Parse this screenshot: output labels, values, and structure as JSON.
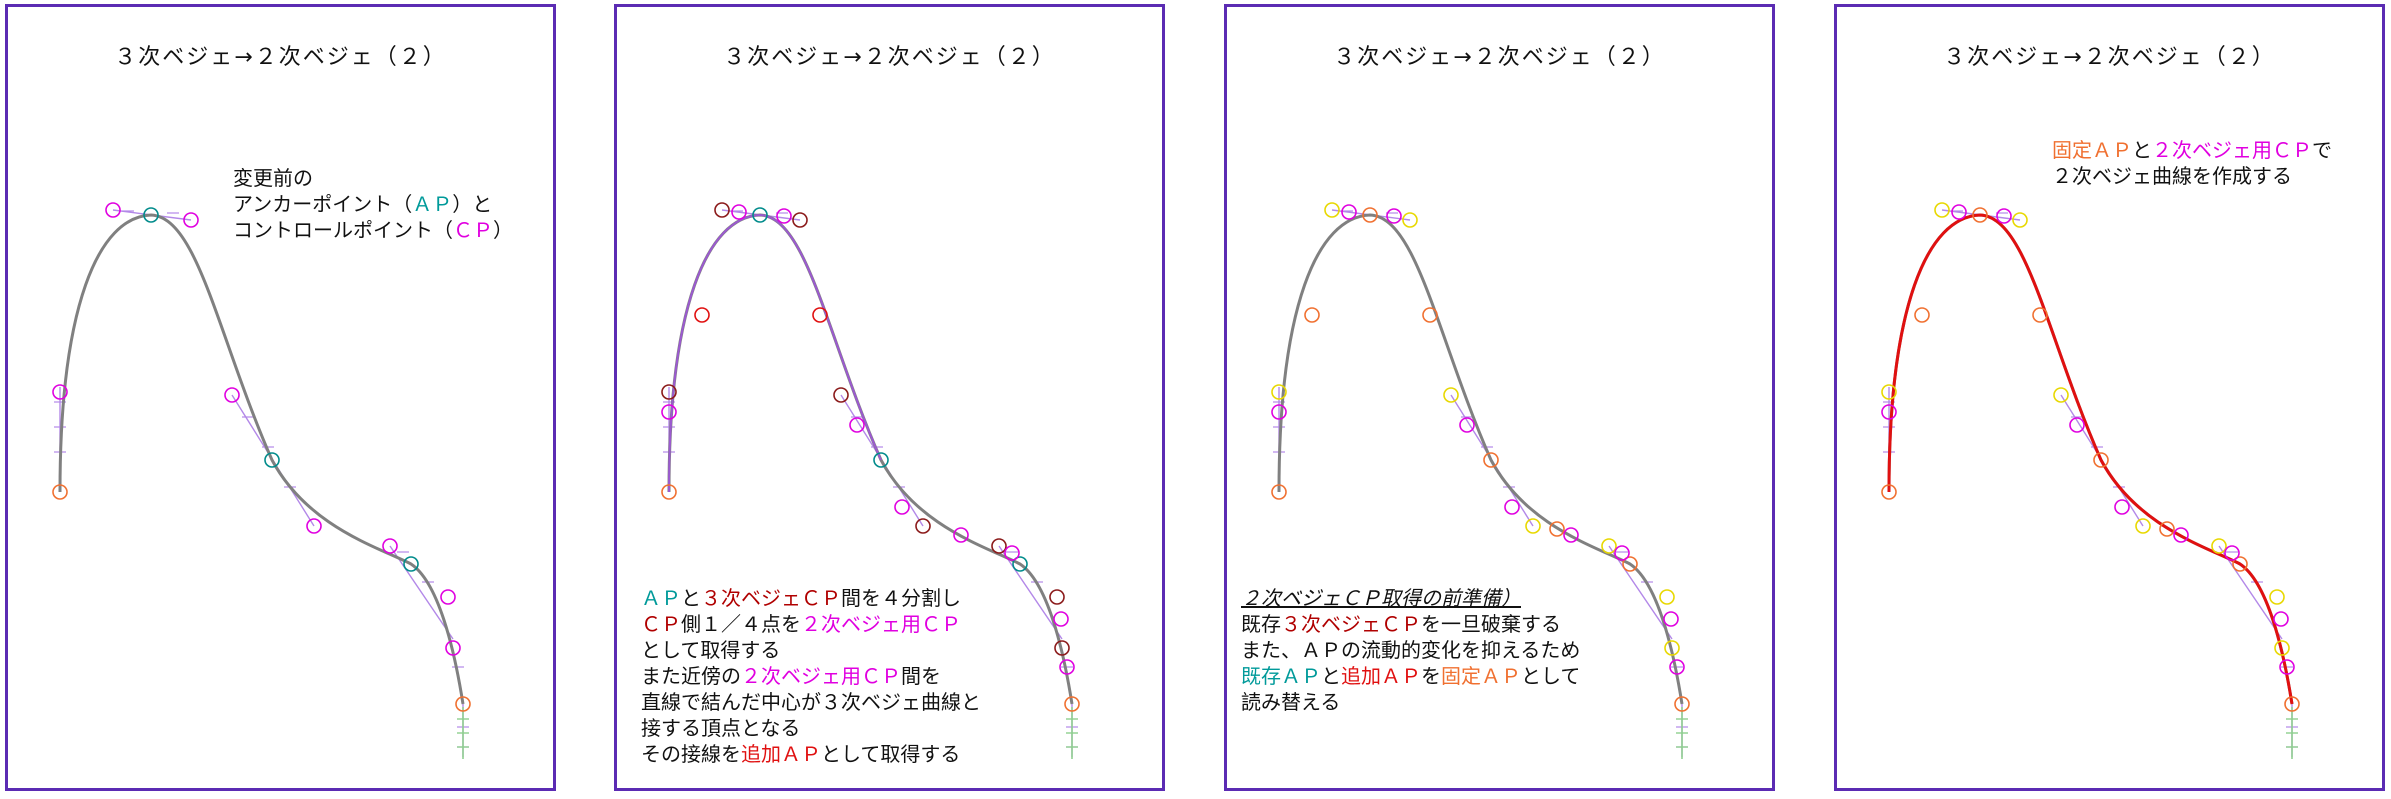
{
  "panels": [
    {
      "title": "３次ベジェ→２次ベジェ（２）",
      "note": [
        [
          {
            "t": "変更前の"
          }
        ],
        [
          {
            "t": "アンカーポイント（"
          },
          {
            "t": "ＡＰ",
            "c": "cyan"
          },
          {
            "t": "）と"
          }
        ],
        [
          {
            "t": "コントロールポイント（"
          },
          {
            "t": "ＣＰ",
            "c": "mag"
          },
          {
            "t": "）"
          }
        ]
      ]
    },
    {
      "title": "３次ベジェ→２次ベジェ（２）",
      "note": [
        [
          {
            "t": "ＡＰ",
            "c": "cyan"
          },
          {
            "t": "と"
          },
          {
            "t": "３次ベジェＣＰ",
            "c": "dred"
          },
          {
            "t": "間を４分割し"
          }
        ],
        [
          {
            "t": "ＣＰ",
            "c": "dred"
          },
          {
            "t": "側１／４点を"
          },
          {
            "t": "２次ベジェ用ＣＰ",
            "c": "mag"
          }
        ],
        [
          {
            "t": "として取得する"
          }
        ],
        [
          {
            "t": "また近傍の"
          },
          {
            "t": "２次ベジェ用ＣＰ",
            "c": "mag"
          },
          {
            "t": "間を"
          }
        ],
        [
          {
            "t": "直線で結んだ中心が３次ベジェ曲線と"
          }
        ],
        [
          {
            "t": "接する頂点となる"
          }
        ],
        [
          {
            "t": "その接線を"
          },
          {
            "t": "追加ＡＰ",
            "c": "red"
          },
          {
            "t": "として取得する"
          }
        ]
      ]
    },
    {
      "title": "３次ベジェ→２次ベジェ（２）",
      "note": [
        [
          {
            "t": "２次ベジェＣＰ取得の前準備）",
            "s": "heading"
          }
        ],
        [
          {
            "t": "既存"
          },
          {
            "t": "３次ベジェＣＰ",
            "c": "dred"
          },
          {
            "t": "を一旦破棄する"
          }
        ],
        [
          {
            "t": "また、ＡＰの流動的変化を抑えるため"
          }
        ],
        [
          {
            "t": "既存ＡＰ",
            "c": "cyan"
          },
          {
            "t": "と"
          },
          {
            "t": "追加ＡＰ",
            "c": "red"
          },
          {
            "t": "を"
          },
          {
            "t": "固定ＡＰ",
            "c": "orange"
          },
          {
            "t": "として"
          }
        ],
        [
          {
            "t": "読み替える"
          }
        ]
      ]
    },
    {
      "title": "３次ベジェ→２次ベジェ（２）",
      "note": [
        [
          {
            "t": "固定ＡＰ",
            "c": "orange"
          },
          {
            "t": "と"
          },
          {
            "t": "２次ベジェ用ＣＰ",
            "c": "mag"
          },
          {
            "t": "で"
          }
        ],
        [
          {
            "t": "２次ベジェ曲線を作成する"
          }
        ]
      ]
    }
  ],
  "colors": {
    "frame": "#5b2bb3",
    "curve": "#808080",
    "handle": "#b388e8",
    "fixed_ap": "#f07030",
    "existing_ap": "#008b8b",
    "cubic_cp": "#e000e0",
    "cubic_cp_old": "#8b1a1a",
    "quad_cp": "#e000e0",
    "added_ap": "#e01010",
    "yellow_marker": "#e8d800",
    "result_curve": "#e01010",
    "tick_green": "#8fd08f"
  }
}
